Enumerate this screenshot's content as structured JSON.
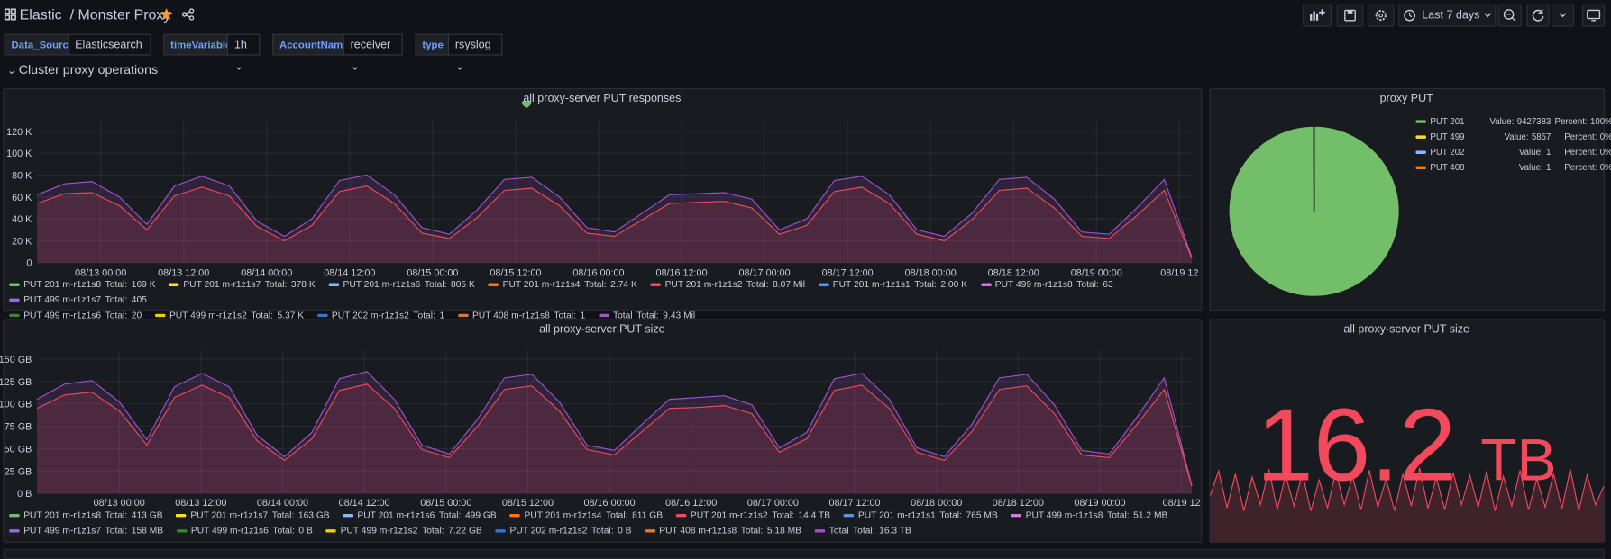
{
  "header": {
    "parent": "Elastic",
    "title": "Monster Proxy",
    "time_range": "Last 7 days"
  },
  "variables": [
    {
      "label": "Data_Source",
      "value": "Elasticsearch"
    },
    {
      "label": "timeVariable",
      "value": "1h"
    },
    {
      "label": "AccountName",
      "value": "receiver"
    },
    {
      "label": "type",
      "value": "rsyslog"
    }
  ],
  "row_title": "Cluster proxy operations",
  "chart_data": [
    {
      "type": "line",
      "title": "all proxy-server PUT responses",
      "xtick_labels": [
        "08/13 00:00",
        "08/13 12:00",
        "08/14 00:00",
        "08/14 12:00",
        "08/15 00:00",
        "08/15 12:00",
        "08/16 00:00",
        "08/16 12:00",
        "08/17 00:00",
        "08/17 12:00",
        "08/18 00:00",
        "08/18 12:00",
        "08/19 00:00",
        "08/19 12"
      ],
      "ylim": [
        0,
        130000
      ],
      "yticks": [
        0,
        {
          "value": 20000,
          "label": "20 K"
        },
        {
          "value": 40000,
          "label": "40 K"
        },
        {
          "value": 60000,
          "label": "60 K"
        },
        {
          "value": 80000,
          "label": "80 K"
        },
        {
          "value": 100000,
          "label": "100 K"
        },
        {
          "value": 120000,
          "label": "120 K"
        }
      ],
      "grid": true,
      "legend_total_label": "Total:",
      "series": [
        {
          "name": "PUT 201 m-r1z1s8",
          "color": "#73bf69",
          "total": "169 K"
        },
        {
          "name": "PUT 201 m-r1z1s7",
          "color": "#fade2a",
          "total": "378 K"
        },
        {
          "name": "PUT 201 m-r1z1s6",
          "color": "#8ab8ff",
          "total": "805 K"
        },
        {
          "name": "PUT 201 m-r1z1s4",
          "color": "#ff780a",
          "total": "2.74 K"
        },
        {
          "name": "PUT 201 m-r1z1s2",
          "color": "#f2495c",
          "total": "8.07 Mil",
          "values": [
            54000,
            63000,
            64000,
            52000,
            30000,
            61000,
            69000,
            61000,
            33000,
            20000,
            34000,
            65000,
            70000,
            54000,
            27000,
            22000,
            41000,
            66000,
            68000,
            52000,
            27000,
            24000,
            39000,
            54000,
            55000,
            56000,
            50000,
            26000,
            34000,
            65000,
            69000,
            54000,
            26000,
            20000,
            39000,
            66000,
            68000,
            50000,
            24000,
            22000,
            43000,
            66000,
            4000
          ]
        },
        {
          "name": "PUT 201 m-r1z1s1",
          "color": "#5794f2",
          "total": "2.00 K"
        },
        {
          "name": "PUT 499 m-r1z1s8",
          "color": "#e072e8",
          "total": "63"
        },
        {
          "name": "PUT 499 m-r1z1s7",
          "color": "#8f6fd9",
          "total": "405"
        },
        {
          "name": "PUT 499 m-r1z1s6",
          "color": "#37872d",
          "total": "20"
        },
        {
          "name": "PUT 499 m-r1z1s2",
          "color": "#f2cc0c",
          "total": "5.37 K"
        },
        {
          "name": "PUT 202 m-r1z1s2",
          "color": "#3274d9",
          "total": "1"
        },
        {
          "name": "PUT 408 m-r1z1s8",
          "color": "#e0752d",
          "total": "1"
        },
        {
          "name": "Total",
          "color": "#a352cc",
          "total": "9.43 Mil",
          "values": [
            62000,
            72000,
            74000,
            60000,
            35000,
            70000,
            79000,
            70000,
            38000,
            24000,
            40000,
            75000,
            80000,
            62000,
            32000,
            26000,
            48000,
            76000,
            78000,
            60000,
            32000,
            28000,
            45000,
            62000,
            63000,
            64000,
            58000,
            30000,
            40000,
            75000,
            79000,
            62000,
            30000,
            24000,
            45000,
            76000,
            78000,
            58000,
            28000,
            26000,
            50000,
            76000,
            5000
          ]
        }
      ]
    },
    {
      "type": "pie",
      "title": "proxy PUT",
      "categories": [
        "PUT 201",
        "PUT 499",
        "PUT 202",
        "PUT 408"
      ],
      "colors": [
        "#73bf69",
        "#fade2a",
        "#8ab8ff",
        "#ff780a"
      ],
      "values": [
        9427383,
        5857,
        1,
        1
      ],
      "percents": [
        100,
        0,
        0,
        0
      ],
      "percent_labels": [
        "100%",
        "0%",
        "0%",
        "0%"
      ],
      "value_text": "Value:",
      "percent_text": "Percent:"
    },
    {
      "type": "line",
      "title": "all proxy-server PUT size",
      "xtick_labels": [
        "08/13 00:00",
        "08/13 12:00",
        "08/14 00:00",
        "08/14 12:00",
        "08/15 00:00",
        "08/15 12:00",
        "08/16 00:00",
        "08/16 12:00",
        "08/17 00:00",
        "08/17 12:00",
        "08/18 00:00",
        "08/18 12:00",
        "08/19 00:00",
        "08/19 12"
      ],
      "ylim": [
        0,
        160
      ],
      "yticks": [
        {
          "value": 0,
          "label": "0 B"
        },
        {
          "value": 25,
          "label": "25 GB"
        },
        {
          "value": 50,
          "label": "50 GB"
        },
        {
          "value": 75,
          "label": "75 GB"
        },
        {
          "value": 100,
          "label": "100 GB"
        },
        {
          "value": 125,
          "label": "125 GB"
        },
        {
          "value": 150,
          "label": "150 GB"
        }
      ],
      "grid": true,
      "legend_total_label": "Total:",
      "series": [
        {
          "name": "PUT 201 m-r1z1s8",
          "color": "#73bf69",
          "total": "413 GB"
        },
        {
          "name": "PUT 201 m-r1z1s7",
          "color": "#fade2a",
          "total": "163 GB"
        },
        {
          "name": "PUT 201 m-r1z1s6",
          "color": "#8ab8ff",
          "total": "499 GB"
        },
        {
          "name": "PUT 201 m-r1z1s4",
          "color": "#ff780a",
          "total": "811 GB"
        },
        {
          "name": "PUT 201 m-r1z1s2",
          "color": "#f2495c",
          "total": "14.4 TB",
          "values": [
            95,
            110,
            113,
            92,
            54,
            107,
            121,
            107,
            59,
            37,
            61,
            115,
            122,
            95,
            49,
            40,
            74,
            116,
            120,
            92,
            49,
            43,
            69,
            95,
            96,
            98,
            89,
            46,
            61,
            115,
            121,
            95,
            46,
            37,
            69,
            116,
            120,
            89,
            43,
            40,
            77,
            116,
            8
          ]
        },
        {
          "name": "PUT 201 m-r1z1s1",
          "color": "#5794f2",
          "total": "765 MB"
        },
        {
          "name": "PUT 499 m-r1z1s8",
          "color": "#e072e8",
          "total": "51.2 MB"
        },
        {
          "name": "PUT 499 m-r1z1s7",
          "color": "#8f6fd9",
          "total": "158 MB"
        },
        {
          "name": "PUT 499 m-r1z1s6",
          "color": "#37872d",
          "total": "0 B"
        },
        {
          "name": "PUT 499 m-r1z1s2",
          "color": "#f2cc0c",
          "total": "7.22 GB"
        },
        {
          "name": "PUT 202 m-r1z1s2",
          "color": "#3274d9",
          "total": "0 B"
        },
        {
          "name": "PUT 408 m-r1z1s8",
          "color": "#e0752d",
          "total": "5.18 MB"
        },
        {
          "name": "Total",
          "color": "#a352cc",
          "total": "16.3 TB",
          "values": [
            105,
            122,
            126,
            102,
            60,
            119,
            134,
            119,
            65,
            41,
            68,
            128,
            136,
            105,
            54,
            44,
            82,
            129,
            133,
            102,
            54,
            48,
            77,
            105,
            107,
            109,
            99,
            51,
            68,
            128,
            134,
            105,
            51,
            41,
            77,
            129,
            133,
            99,
            48,
            44,
            85,
            129,
            9
          ]
        }
      ]
    },
    {
      "type": "stat",
      "title": "all proxy-server PUT size",
      "value": 16.2,
      "unit": "TB",
      "color": "#f2495c",
      "ylim": [
        0,
        100
      ],
      "sparkline": [
        45,
        85,
        25,
        80,
        20,
        75,
        30,
        88,
        22,
        78,
        28,
        82,
        20,
        70,
        25,
        84,
        30,
        76,
        22,
        86,
        26,
        72,
        20,
        80,
        28,
        90,
        24,
        74,
        22,
        82,
        30,
        78,
        26,
        84,
        20,
        76,
        28,
        86,
        22,
        72,
        26,
        80,
        24,
        88,
        20,
        78,
        30,
        60
      ]
    }
  ]
}
